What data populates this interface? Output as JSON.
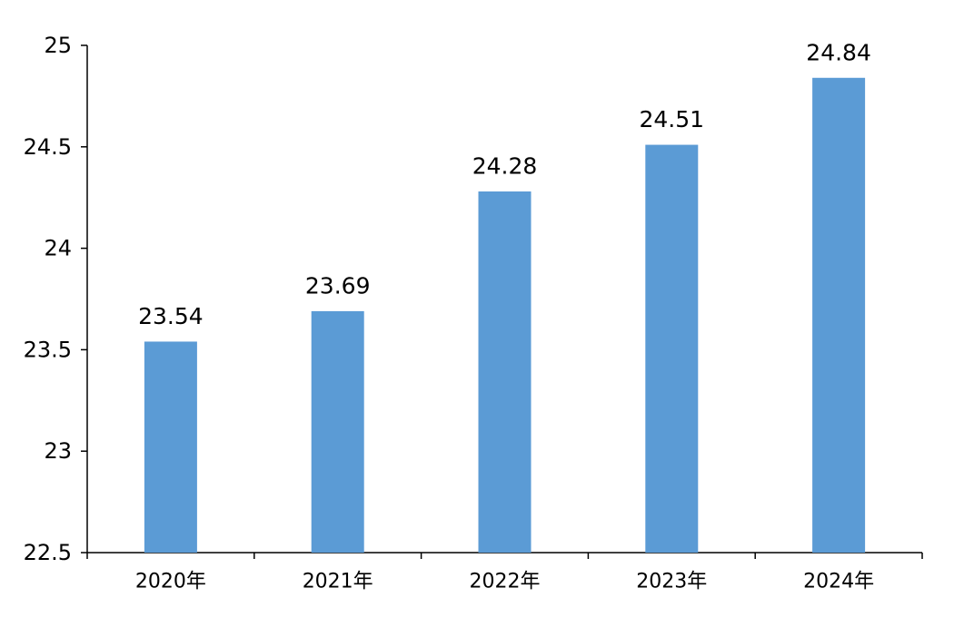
{
  "chart_data": {
    "type": "bar",
    "categories": [
      "2020年",
      "2021年",
      "2022年",
      "2023年",
      "2024年"
    ],
    "values": [
      23.54,
      23.69,
      24.28,
      24.51,
      24.84
    ],
    "value_labels": [
      "23.54",
      "23.69",
      "24.28",
      "24.51",
      "24.84"
    ],
    "title": "",
    "xlabel": "",
    "ylabel": "",
    "ylim": [
      22.5,
      25
    ],
    "yticks": [
      22.5,
      23,
      23.5,
      24,
      24.5,
      25
    ],
    "ytick_labels": [
      "22.5",
      "23",
      "23.5",
      "24",
      "24.5",
      "25"
    ],
    "grid": false,
    "legend": "none",
    "bar_color": "#5b9bd5",
    "axis_color": "#000000"
  }
}
